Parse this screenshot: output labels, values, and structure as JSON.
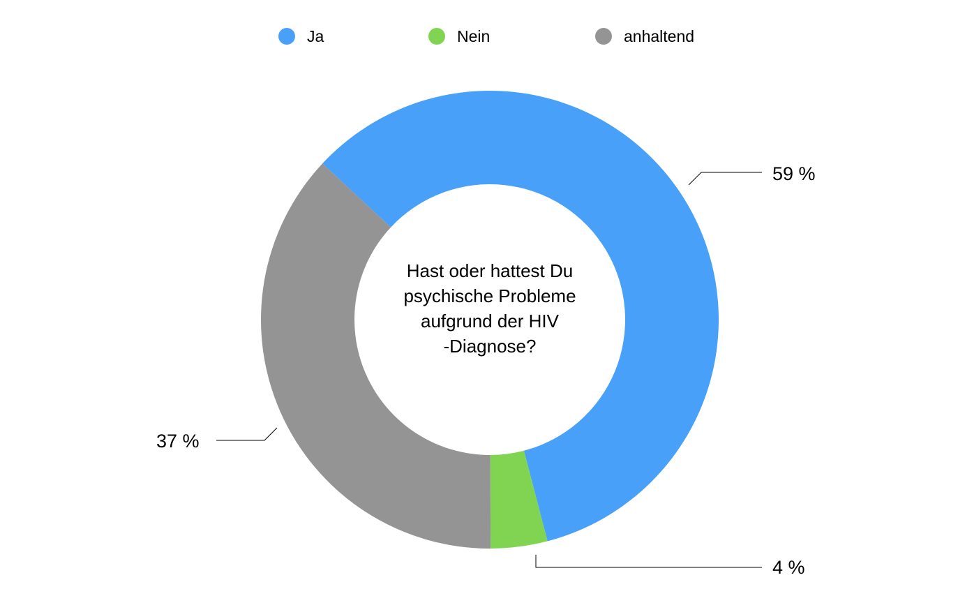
{
  "chart_data": {
    "type": "pie",
    "variant": "donut",
    "title_lines": [
      "Hast oder hattest Du",
      "psychische Probleme",
      "aufgrund der HIV",
      "-Diagnose?"
    ],
    "legend_position": "top",
    "categories": [
      "Ja",
      "Nein",
      "anhaltend"
    ],
    "values": [
      59,
      4,
      37
    ],
    "value_labels": [
      "59 %",
      "4 %",
      "37 %"
    ],
    "colors": [
      "#48a0f8",
      "#80d452",
      "#949494"
    ],
    "start_angle_deg": -47
  }
}
